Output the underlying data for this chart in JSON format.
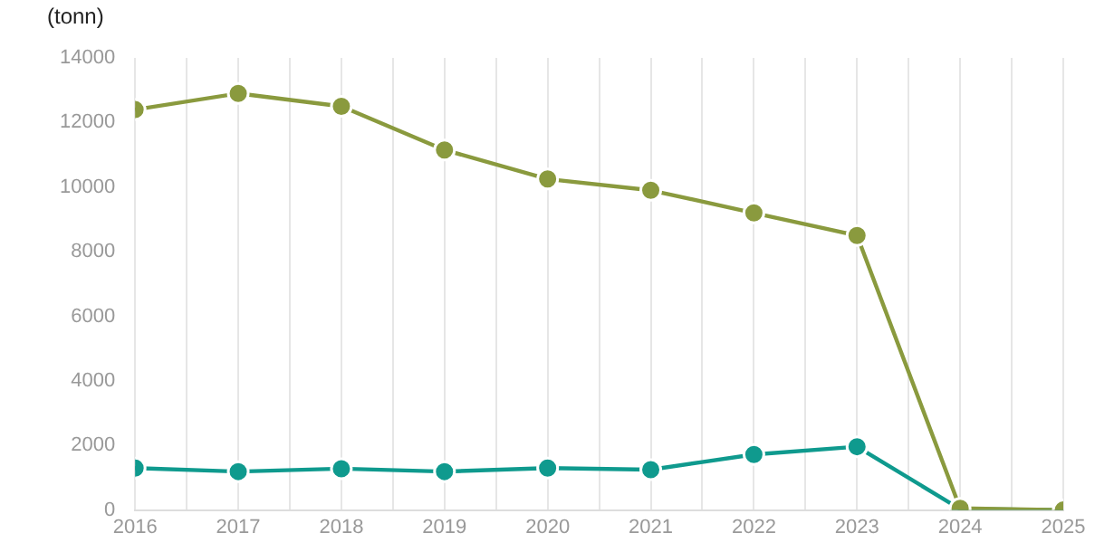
{
  "chart_data": {
    "type": "line",
    "ylabel": "(tonn)",
    "x": [
      2016,
      2017,
      2018,
      2019,
      2020,
      2021,
      2022,
      2023,
      2024,
      2025
    ],
    "xlim": [
      2016,
      2025
    ],
    "xticks": [
      2016,
      {
        "value": 2016.5,
        "label": null
      },
      2017,
      {
        "value": 2017.5,
        "label": null
      },
      2018,
      {
        "value": 2018.5,
        "label": null
      },
      2019,
      {
        "value": 2019.5,
        "label": null
      },
      2020,
      {
        "value": 2020.5,
        "label": null
      },
      2021,
      {
        "value": 2021.5,
        "label": null
      },
      2022,
      {
        "value": 2022.5,
        "label": null
      },
      2023,
      {
        "value": 2023.5,
        "label": null
      },
      2024,
      {
        "value": 2024.5,
        "label": null
      },
      2025
    ],
    "ylim": [
      0,
      14000
    ],
    "yticks": [
      0,
      2000,
      4000,
      6000,
      8000,
      10000,
      12000,
      14000
    ],
    "grid": "x",
    "marker": "circle",
    "line_style": "solid",
    "legend": false,
    "series": [
      {
        "color": "#0f9a8e",
        "values": [
          1300,
          1190,
          1280,
          1190,
          1300,
          1250,
          1720,
          1960,
          30,
          0
        ]
      },
      {
        "color": "#8a9a3e",
        "values": [
          12400,
          12900,
          12500,
          11150,
          10250,
          9900,
          9200,
          8500,
          50,
          0
        ]
      }
    ]
  }
}
